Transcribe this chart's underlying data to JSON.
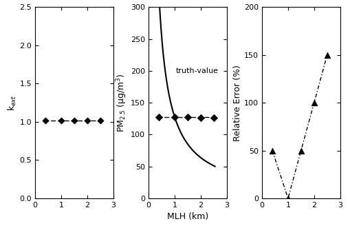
{
  "panel1": {
    "ylabel": "k$_{ext}$",
    "xlim": [
      0,
      3
    ],
    "ylim": [
      0.0,
      2.5
    ],
    "yticks": [
      0.0,
      0.5,
      1.0,
      1.5,
      2.0,
      2.5
    ],
    "xticks": [
      0,
      1,
      2,
      3
    ],
    "scatter_x": [
      0.4,
      1.0,
      1.5,
      2.0,
      2.5
    ],
    "scatter_y": [
      1.02,
      1.02,
      1.02,
      1.02,
      1.02
    ],
    "line_x": [
      0.35,
      2.6
    ],
    "line_y": [
      1.02,
      1.02
    ]
  },
  "panel2": {
    "ylabel": "PM$_{2.5}$ (μg/m$^3$)",
    "xlim": [
      0,
      3
    ],
    "ylim": [
      0,
      300
    ],
    "yticks": [
      0,
      50,
      100,
      150,
      200,
      250,
      300
    ],
    "xticks": [
      0,
      1,
      2,
      3
    ],
    "curve_start": 0.4,
    "curve_end": 2.55,
    "curve_C": 128.0,
    "scatter_x": [
      0.4,
      1.0,
      1.5,
      2.0,
      2.5
    ],
    "scatter_y": [
      128,
      128,
      127,
      126,
      126
    ],
    "line_x": [
      0.35,
      2.6
    ],
    "line_y": [
      127,
      127
    ],
    "annotation": "truth-value",
    "ann_x": 1.05,
    "ann_y": 200
  },
  "panel3": {
    "ylabel": "Relative Error (%)",
    "xlim": [
      0,
      3
    ],
    "ylim": [
      0,
      200
    ],
    "yticks": [
      0,
      50,
      100,
      150,
      200
    ],
    "xticks": [
      0,
      1,
      2,
      3
    ],
    "scatter_x": [
      0.4,
      1.0,
      1.5,
      2.0,
      2.5
    ],
    "scatter_y": [
      50,
      0,
      50,
      100,
      150
    ]
  },
  "shared_xlabel": "MLH (km)",
  "bg_color": "#ffffff",
  "line_color": "#000000",
  "marker_color": "#000000"
}
